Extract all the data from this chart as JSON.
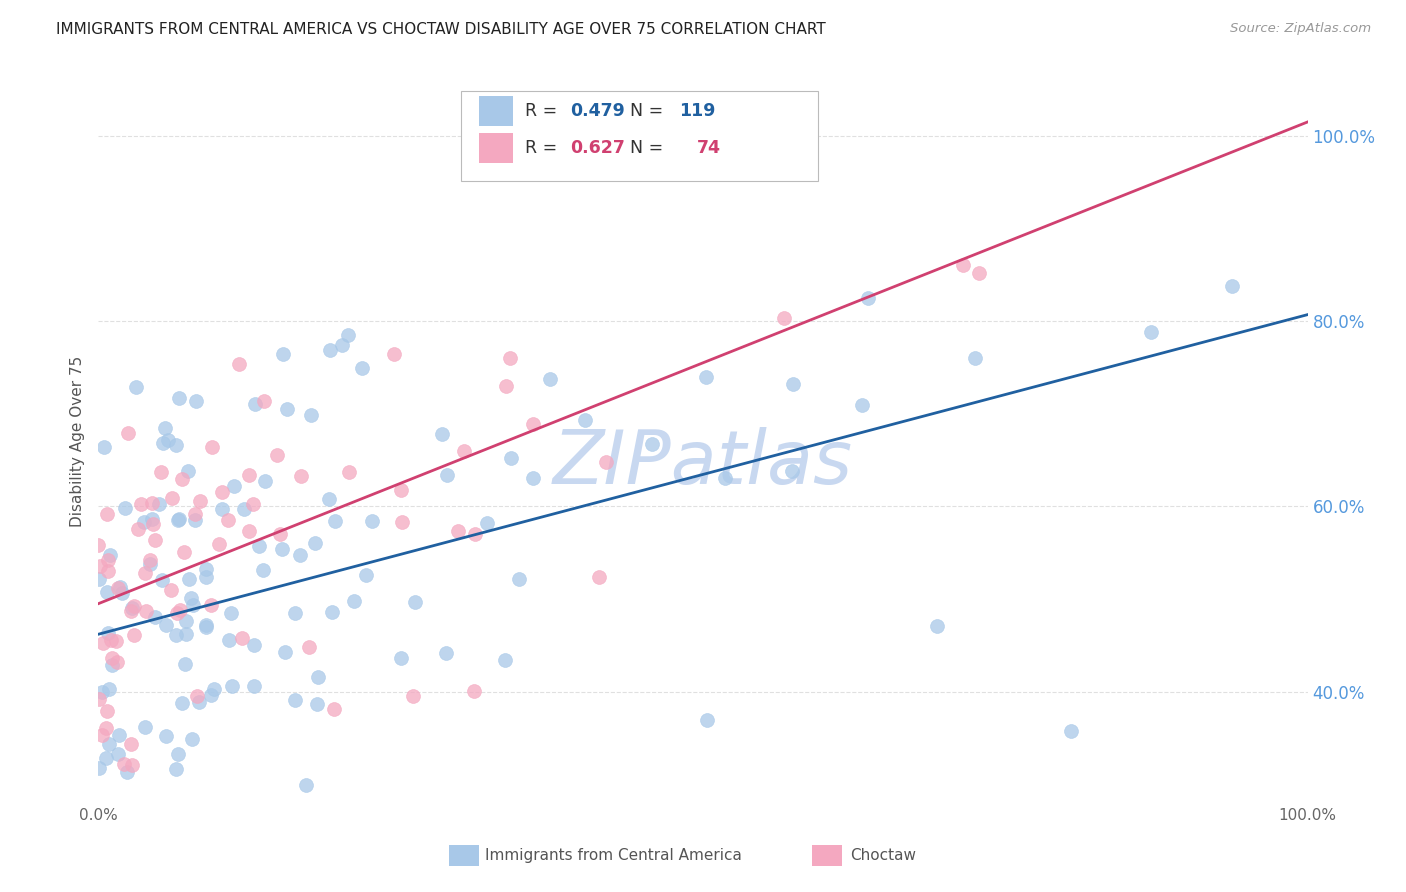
{
  "title": "IMMIGRANTS FROM CENTRAL AMERICA VS CHOCTAW DISABILITY AGE OVER 75 CORRELATION CHART",
  "source": "Source: ZipAtlas.com",
  "ylabel": "Disability Age Over 75",
  "ytick_labels": [
    "40.0%",
    "60.0%",
    "80.0%",
    "100.0%"
  ],
  "ytick_values": [
    0.4,
    0.6,
    0.8,
    1.0
  ],
  "xlim": [
    0.0,
    1.0
  ],
  "ylim": [
    0.28,
    1.06
  ],
  "blue_R": 0.479,
  "blue_N": 119,
  "pink_R": 0.627,
  "pink_N": 74,
  "blue_intercept": 0.462,
  "blue_slope": 0.345,
  "pink_intercept": 0.495,
  "pink_slope": 0.52,
  "blue_color": "#A8C8E8",
  "blue_line_color": "#2060A0",
  "pink_color": "#F4A8C0",
  "pink_line_color": "#D04070",
  "watermark": "ZIPatlas",
  "watermark_color": "#C8D8F0",
  "background_color": "#FFFFFF",
  "grid_color": "#E0E0E0",
  "title_color": "#222222",
  "source_color": "#999999",
  "legend_R_color_blue": "#2060A0",
  "legend_N_color_blue": "#2060A0",
  "legend_R_color_pink": "#D04070",
  "legend_N_color_pink": "#D04070"
}
